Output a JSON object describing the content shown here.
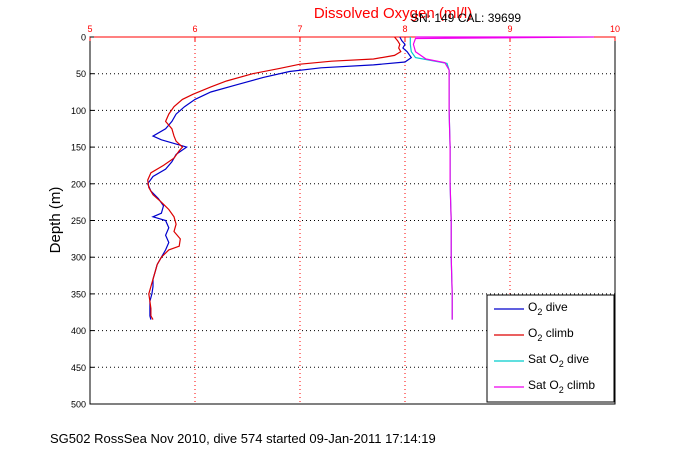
{
  "chart_data": {
    "type": "line",
    "title": "Dissolved Oxygen (ml/l)",
    "sensor_label": "SN: 149  CAL: 39699",
    "caption": "SG502 RossSea Nov 2010, dive 574 started 09-Jan-2011 17:14:19",
    "ylabel": "Depth (m)",
    "xlabel": "",
    "xlim": [
      5,
      10
    ],
    "ylim": [
      0,
      500
    ],
    "y_reversed": true,
    "x_axis_position": "top",
    "x_ticks": [
      5,
      6,
      7,
      8,
      9,
      10
    ],
    "y_ticks": [
      0,
      50,
      100,
      150,
      200,
      250,
      300,
      350,
      400,
      450,
      500
    ],
    "grid": true,
    "legend_position": "bottom-right",
    "series": [
      {
        "name": "O2 dive",
        "legend_main": "O",
        "legend_sub": "2",
        "legend_suffix": " dive",
        "color": "#0000cc",
        "points": [
          [
            7.95,
            0
          ],
          [
            7.97,
            5
          ],
          [
            8.0,
            10
          ],
          [
            7.98,
            15
          ],
          [
            8.02,
            20
          ],
          [
            8.06,
            28
          ],
          [
            8.0,
            34
          ],
          [
            7.7,
            38
          ],
          [
            7.2,
            42
          ],
          [
            6.9,
            47
          ],
          [
            6.65,
            55
          ],
          [
            6.4,
            65
          ],
          [
            6.15,
            75
          ],
          [
            6.0,
            85
          ],
          [
            5.9,
            95
          ],
          [
            5.82,
            105
          ],
          [
            5.78,
            115
          ],
          [
            5.72,
            125
          ],
          [
            5.6,
            135
          ],
          [
            5.68,
            140
          ],
          [
            5.8,
            145
          ],
          [
            5.92,
            150
          ],
          [
            5.82,
            160
          ],
          [
            5.78,
            170
          ],
          [
            5.72,
            180
          ],
          [
            5.6,
            190
          ],
          [
            5.55,
            200
          ],
          [
            5.58,
            210
          ],
          [
            5.65,
            220
          ],
          [
            5.7,
            230
          ],
          [
            5.68,
            240
          ],
          [
            5.6,
            245
          ],
          [
            5.72,
            250
          ],
          [
            5.75,
            260
          ],
          [
            5.72,
            270
          ],
          [
            5.75,
            280
          ],
          [
            5.72,
            290
          ],
          [
            5.68,
            300
          ],
          [
            5.64,
            310
          ],
          [
            5.62,
            320
          ],
          [
            5.6,
            330
          ],
          [
            5.6,
            340
          ],
          [
            5.59,
            350
          ],
          [
            5.57,
            360
          ],
          [
            5.57,
            370
          ],
          [
            5.57,
            380
          ],
          [
            5.58,
            385
          ]
        ]
      },
      {
        "name": "O2 climb",
        "legend_main": "O",
        "legend_sub": "2",
        "legend_suffix": " climb",
        "color": "#dd0000",
        "points": [
          [
            7.9,
            0
          ],
          [
            7.93,
            5
          ],
          [
            7.95,
            10
          ],
          [
            7.94,
            15
          ],
          [
            7.96,
            20
          ],
          [
            7.9,
            25
          ],
          [
            7.7,
            30
          ],
          [
            7.3,
            33
          ],
          [
            7.0,
            37
          ],
          [
            6.8,
            43
          ],
          [
            6.55,
            50
          ],
          [
            6.3,
            60
          ],
          [
            6.15,
            68
          ],
          [
            5.98,
            78
          ],
          [
            5.88,
            85
          ],
          [
            5.8,
            95
          ],
          [
            5.75,
            105
          ],
          [
            5.72,
            115
          ],
          [
            5.78,
            125
          ],
          [
            5.8,
            135
          ],
          [
            5.82,
            142
          ],
          [
            5.88,
            150
          ],
          [
            5.85,
            155
          ],
          [
            5.8,
            165
          ],
          [
            5.7,
            175
          ],
          [
            5.58,
            185
          ],
          [
            5.55,
            195
          ],
          [
            5.56,
            205
          ],
          [
            5.6,
            215
          ],
          [
            5.68,
            225
          ],
          [
            5.75,
            235
          ],
          [
            5.8,
            245
          ],
          [
            5.82,
            255
          ],
          [
            5.8,
            265
          ],
          [
            5.86,
            275
          ],
          [
            5.85,
            285
          ],
          [
            5.75,
            290
          ],
          [
            5.68,
            300
          ],
          [
            5.64,
            310
          ],
          [
            5.62,
            320
          ],
          [
            5.6,
            330
          ],
          [
            5.58,
            340
          ],
          [
            5.56,
            350
          ],
          [
            5.57,
            360
          ],
          [
            5.58,
            370
          ],
          [
            5.58,
            380
          ],
          [
            5.6,
            385
          ]
        ]
      },
      {
        "name": "Sat O2 dive",
        "legend_main": "Sat O",
        "legend_sub": "2",
        "legend_suffix": " dive",
        "color": "#00cccc",
        "points": [
          [
            8.05,
            0
          ],
          [
            8.05,
            10
          ],
          [
            8.06,
            20
          ],
          [
            8.1,
            28
          ],
          [
            8.25,
            32
          ],
          [
            8.4,
            36
          ],
          [
            8.42,
            45
          ],
          [
            8.42,
            60
          ],
          [
            8.42,
            100
          ],
          [
            8.43,
            150
          ],
          [
            8.43,
            200
          ],
          [
            8.44,
            250
          ],
          [
            8.44,
            300
          ],
          [
            8.45,
            350
          ],
          [
            8.45,
            385
          ]
        ]
      },
      {
        "name": "Sat O2 climb",
        "legend_main": "Sat O",
        "legend_sub": "2",
        "legend_suffix": " climb",
        "color": "#ee00ee",
        "points": [
          [
            8.1,
            0
          ],
          [
            9.8,
            0
          ],
          [
            8.1,
            2
          ],
          [
            8.08,
            10
          ],
          [
            8.1,
            20
          ],
          [
            8.2,
            30
          ],
          [
            8.38,
            35
          ],
          [
            8.42,
            45
          ],
          [
            8.42,
            60
          ],
          [
            8.42,
            100
          ],
          [
            8.43,
            150
          ],
          [
            8.43,
            200
          ],
          [
            8.44,
            250
          ],
          [
            8.44,
            300
          ],
          [
            8.45,
            350
          ],
          [
            8.45,
            385
          ]
        ]
      }
    ]
  }
}
